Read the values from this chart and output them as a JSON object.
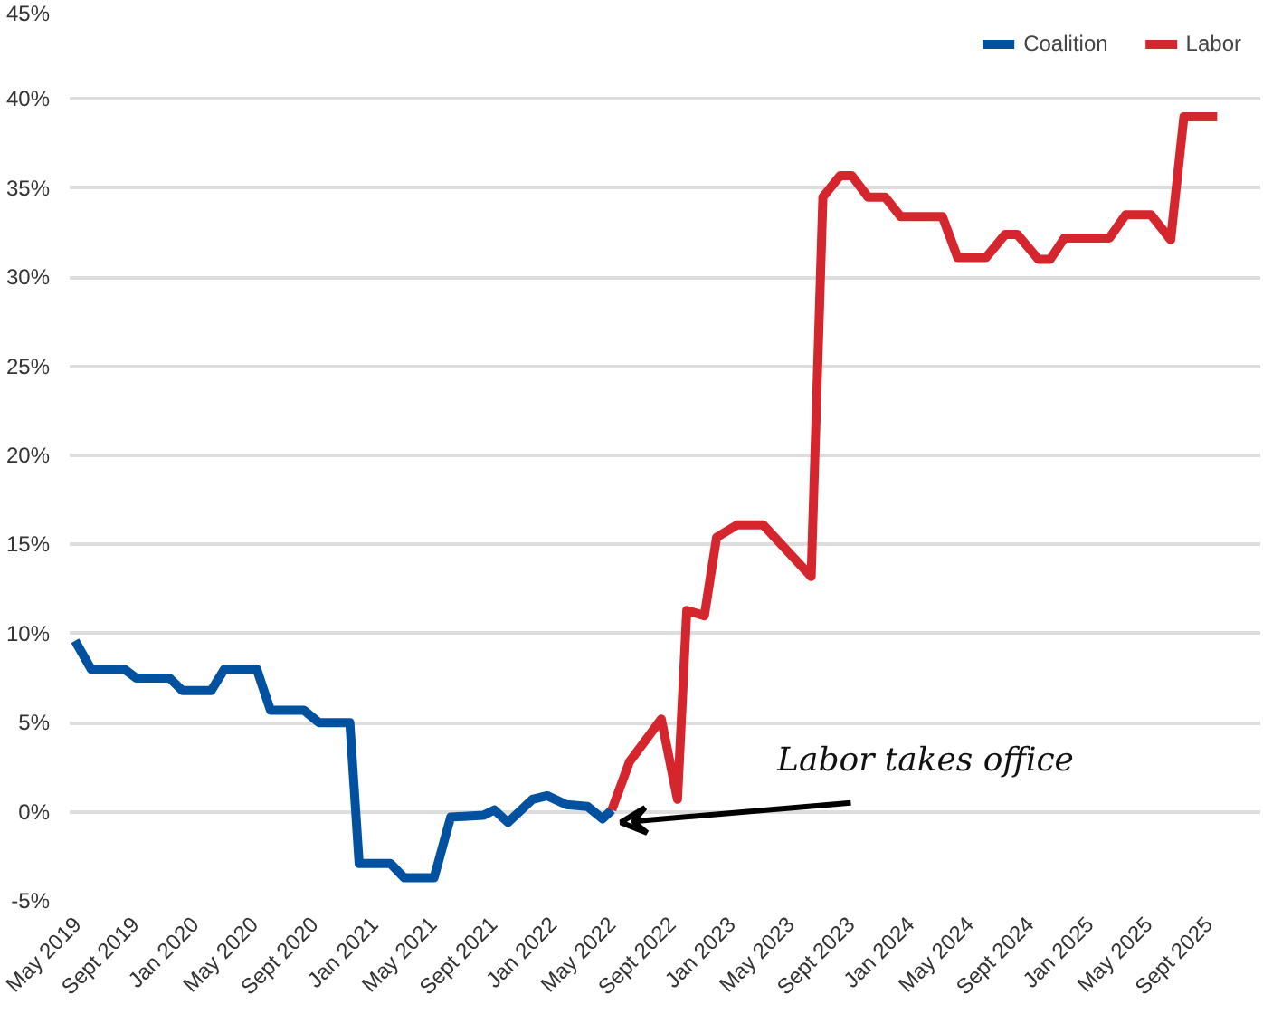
{
  "chart_data": {
    "type": "line",
    "annotations": [
      {
        "text": "Labor takes office",
        "x": "2022-05",
        "y": 0
      }
    ],
    "series": [
      {
        "name": "Coalition",
        "color": "#0052a0",
        "x": [
          "2019-05",
          "2019-06-03",
          "2019-08-10",
          "2019-09-03",
          "2019-11-10",
          "2019-12-06",
          "2020-02-03",
          "2020-03",
          "2020-05-06",
          "2020-06-03",
          "2020-08-10",
          "2020-09-10",
          "2020-11-12",
          "2020-12",
          "2021-02-03",
          "2021-03-03",
          "2021-05-03",
          "2021-06-06",
          "2021-08-12",
          "2021-09-03",
          "2021-10",
          "2021-11-20",
          "2021-12-20",
          "2022-01-28",
          "2022-03-12",
          "2022-04-12",
          "2022-05"
        ],
        "values": [
          9.6,
          8.0,
          8.0,
          7.5,
          7.5,
          6.8,
          6.8,
          8.0,
          8.0,
          5.7,
          5.7,
          5.0,
          5.0,
          -2.9,
          -2.9,
          -3.7,
          -3.7,
          -0.3,
          -0.2,
          0.1,
          -0.6,
          0.7,
          0.9,
          0.4,
          0.3,
          -0.4,
          0.1
        ]
      },
      {
        "name": "Labor",
        "color": "#d5252d",
        "x": [
          "2022-05",
          "2022-06-06",
          "2022-08-10",
          "2022-09-12",
          "2022-10",
          "2022-11-06",
          "2022-12",
          "2023-01-12",
          "2023-03-06",
          "2023-06-12",
          "2023-07-06",
          "2023-08-10",
          "2023-09-03",
          "2023-10-06",
          "2023-11-10",
          "2023-12-12",
          "2024-03-06",
          "2024-04-06",
          "2024-06-03",
          "2024-07-12",
          "2024-08-06",
          "2024-09-18",
          "2024-10-12",
          "2024-11-10",
          "2025-02-10",
          "2025-03-15",
          "2025-05-06",
          "2025-06-15",
          "2025-07-12",
          "2025-09-18"
        ],
        "values": [
          0.1,
          2.8,
          5.2,
          0.7,
          11.3,
          11.0,
          15.4,
          16.1,
          16.1,
          13.2,
          34.5,
          35.7,
          35.7,
          34.5,
          34.5,
          33.4,
          33.4,
          31.1,
          31.1,
          32.4,
          32.4,
          31.0,
          31.0,
          32.2,
          32.2,
          33.5,
          33.5,
          32.1,
          39.0,
          39.0
        ]
      }
    ],
    "xlim": [
      "2019-04-20",
      "2025-12-15"
    ],
    "xticks": [
      {
        "value": "2019-05",
        "label": "May 2019"
      },
      {
        "value": "2019-09",
        "label": "Sept 2019"
      },
      {
        "value": "2020-01",
        "label": "Jan 2020"
      },
      {
        "value": "2020-05",
        "label": "May 2020"
      },
      {
        "value": "2020-09",
        "label": "Sept 2020"
      },
      {
        "value": "2021-01",
        "label": "Jan 2021"
      },
      {
        "value": "2021-05",
        "label": "May 2021"
      },
      {
        "value": "2021-09",
        "label": "Sept 2021"
      },
      {
        "value": "2022-01",
        "label": "Jan 2022"
      },
      {
        "value": "2022-05",
        "label": "May 2022"
      },
      {
        "value": "2022-09",
        "label": "Sept 2022"
      },
      {
        "value": "2023-01",
        "label": "Jan 2023"
      },
      {
        "value": "2023-05",
        "label": "May 2023"
      },
      {
        "value": "2023-09",
        "label": "Sept 2023"
      },
      {
        "value": "2024-01",
        "label": "Jan 2024"
      },
      {
        "value": "2024-05",
        "label": "May 2024"
      },
      {
        "value": "2024-09",
        "label": "Sept 2024"
      },
      {
        "value": "2025-01",
        "label": "Jan 2025"
      },
      {
        "value": "2025-05",
        "label": "May 2025"
      },
      {
        "value": "2025-09",
        "label": "Sept 2025"
      }
    ],
    "ylim": [
      -5,
      45
    ],
    "yticks": [
      {
        "value": -5,
        "label": "-5%"
      },
      {
        "value": 0,
        "label": "0%"
      },
      {
        "value": 5,
        "label": "5%"
      },
      {
        "value": 10,
        "label": "10%"
      },
      {
        "value": 15,
        "label": "15%"
      },
      {
        "value": 20,
        "label": "20%"
      },
      {
        "value": 25,
        "label": "25%"
      },
      {
        "value": 30,
        "label": "30%"
      },
      {
        "value": 35,
        "label": "35%"
      },
      {
        "value": 40,
        "label": "40%"
      },
      {
        "value": 45,
        "label": "45%"
      }
    ],
    "grid": "y",
    "legend": "top right",
    "line_style": "solid"
  }
}
